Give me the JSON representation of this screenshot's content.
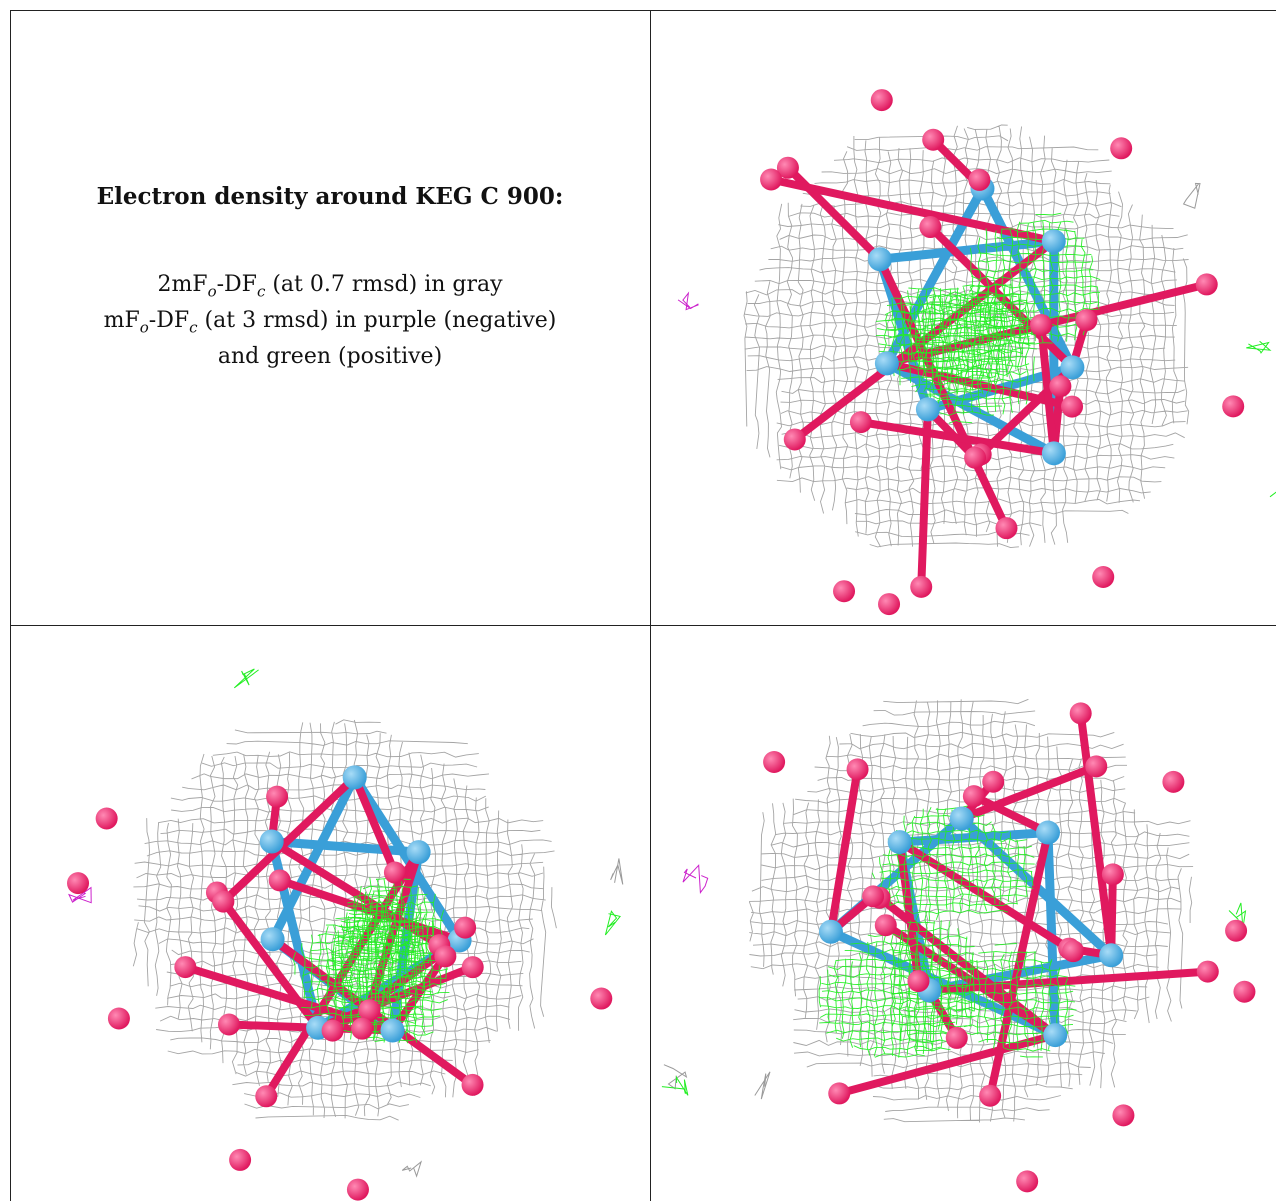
{
  "caption": {
    "title": "Electron density around KEG C 900:",
    "line1_lead": "2mF",
    "line1_sub_o": "o",
    "line1_mid": "-DF",
    "line1_sub_c": "c",
    "line1_tail": " (at 0.7 rmsd) in gray",
    "line2_lead": "mF",
    "line2_sub_o": "o",
    "line2_mid": "-DF",
    "line2_sub_c": "c",
    "line2_tail": " (at 3 rmsd) in purple (negative)",
    "line3": "and green (positive)"
  },
  "panels": [
    {
      "id": "top-right",
      "view": "density-view-1"
    },
    {
      "id": "bottom-left",
      "view": "density-view-2"
    },
    {
      "id": "bottom-right",
      "view": "density-view-3"
    }
  ],
  "colors": {
    "mesh_2fofc": "#9a9a9a",
    "mesh_positive": "#22ee22",
    "mesh_negative": "#cc22cc",
    "atom_oxygen": "#e0195f",
    "atom_metal": "#3a9fd8",
    "border": "#222222"
  }
}
